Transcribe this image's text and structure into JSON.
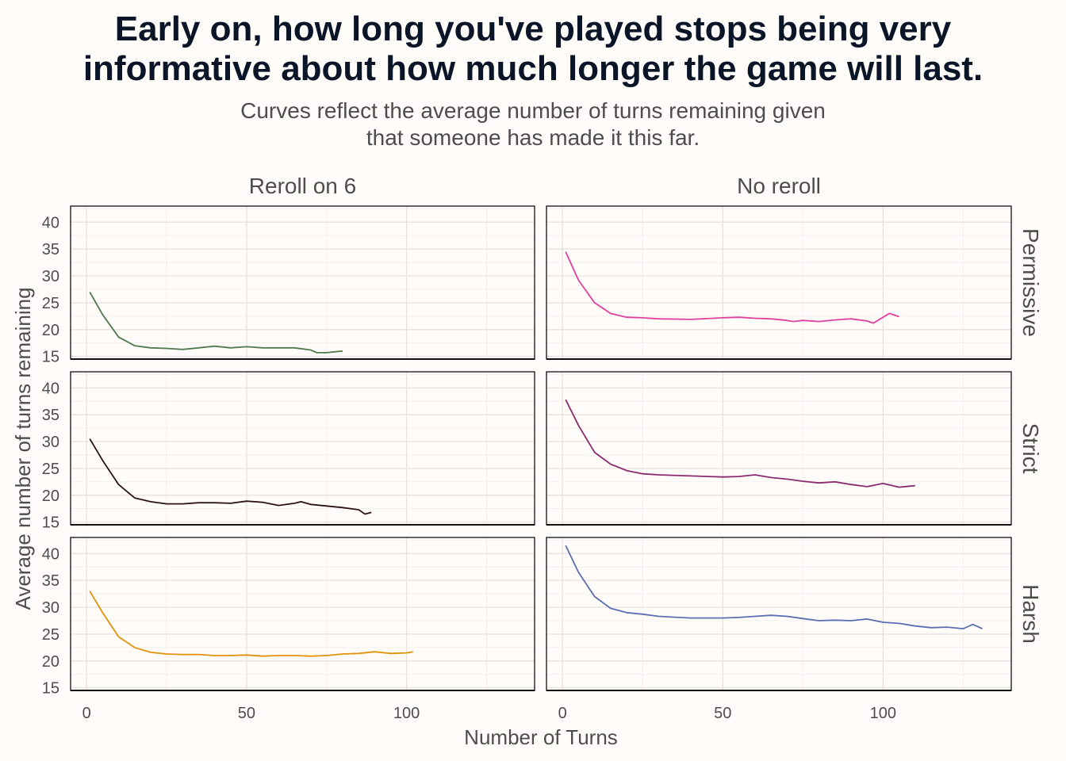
{
  "chart_data": {
    "type": "line",
    "title": "Early on, how long you've played stops being very informative about how much longer the game will last.",
    "title_lines": [
      "Early on, how long you've played stops being very",
      "informative about how much longer the game will last."
    ],
    "subtitle": "Curves reflect the average number of turns remaining given that someone has made it this far.",
    "subtitle_lines": [
      "Curves reflect the average number of turns remaining given",
      "that someone has made it this far."
    ],
    "xlabel": "Number of Turns",
    "ylabel": "Average number of turns remaining",
    "xlim": [
      -5,
      140
    ],
    "ylim": [
      14.5,
      43
    ],
    "x_ticks": [
      0,
      50,
      100
    ],
    "y_ticks": [
      15,
      20,
      25,
      30,
      35,
      40
    ],
    "grid": true,
    "columns": [
      "Reroll on 6",
      "No reroll"
    ],
    "rows": [
      "Permissive",
      "Strict",
      "Harsh"
    ],
    "panels": [
      {
        "row": "Permissive",
        "column": "Reroll on 6",
        "color": "#4f7a4f",
        "x": [
          1,
          5,
          10,
          15,
          20,
          25,
          30,
          35,
          40,
          45,
          50,
          55,
          60,
          65,
          70,
          72,
          75,
          80
        ],
        "y": [
          27,
          22.8,
          18.6,
          17.0,
          16.6,
          16.5,
          16.3,
          16.6,
          16.9,
          16.6,
          16.8,
          16.6,
          16.6,
          16.6,
          16.2,
          15.7,
          15.7,
          16.0
        ]
      },
      {
        "row": "Permissive",
        "column": "No reroll",
        "color": "#e0409e",
        "x": [
          1,
          5,
          10,
          15,
          20,
          25,
          30,
          40,
          50,
          55,
          60,
          65,
          70,
          72,
          75,
          80,
          85,
          90,
          95,
          97,
          100,
          102,
          105
        ],
        "y": [
          34.5,
          29.2,
          25.0,
          23.0,
          22.3,
          22.2,
          22.0,
          21.9,
          22.2,
          22.3,
          22.1,
          22.0,
          21.7,
          21.5,
          21.7,
          21.5,
          21.8,
          22.0,
          21.6,
          21.2,
          22.3,
          23.0,
          22.4
        ]
      },
      {
        "row": "Strict",
        "column": "Reroll on 6",
        "color": "#2d1218",
        "x": [
          1,
          5,
          10,
          15,
          20,
          25,
          30,
          35,
          40,
          45,
          50,
          55,
          60,
          65,
          67,
          70,
          75,
          80,
          85,
          87,
          89
        ],
        "y": [
          30.5,
          26.5,
          22.0,
          19.5,
          18.8,
          18.4,
          18.4,
          18.6,
          18.6,
          18.5,
          18.9,
          18.7,
          18.1,
          18.5,
          18.8,
          18.3,
          18.0,
          17.7,
          17.3,
          16.5,
          16.8
        ]
      },
      {
        "row": "Strict",
        "column": "No reroll",
        "color": "#8c2a70",
        "x": [
          1,
          5,
          10,
          15,
          20,
          25,
          30,
          40,
          50,
          55,
          60,
          65,
          70,
          75,
          80,
          85,
          90,
          95,
          100,
          105,
          110
        ],
        "y": [
          37.8,
          33.0,
          28.0,
          25.8,
          24.6,
          24.0,
          23.8,
          23.6,
          23.4,
          23.5,
          23.8,
          23.3,
          23.0,
          22.6,
          22.3,
          22.5,
          22.0,
          21.6,
          22.2,
          21.5,
          21.8
        ]
      },
      {
        "row": "Harsh",
        "column": "Reroll on 6",
        "color": "#e0920a",
        "x": [
          1,
          5,
          10,
          15,
          20,
          25,
          30,
          35,
          40,
          45,
          50,
          55,
          60,
          65,
          70,
          75,
          80,
          85,
          90,
          95,
          100,
          102
        ],
        "y": [
          33.0,
          29.0,
          24.5,
          22.5,
          21.6,
          21.3,
          21.2,
          21.2,
          21.0,
          21.0,
          21.1,
          20.9,
          21.0,
          21.0,
          20.9,
          21.0,
          21.3,
          21.4,
          21.7,
          21.4,
          21.5,
          21.7
        ]
      },
      {
        "row": "Harsh",
        "column": "No reroll",
        "color": "#5b6fb0",
        "x": [
          1,
          5,
          10,
          15,
          20,
          25,
          30,
          40,
          50,
          55,
          60,
          65,
          70,
          75,
          80,
          85,
          90,
          95,
          100,
          105,
          110,
          115,
          120,
          125,
          128,
          131
        ],
        "y": [
          41.5,
          36.5,
          32.0,
          29.8,
          29.0,
          28.7,
          28.3,
          28.0,
          28.0,
          28.1,
          28.3,
          28.5,
          28.3,
          27.9,
          27.5,
          27.6,
          27.5,
          27.8,
          27.2,
          27.0,
          26.5,
          26.2,
          26.3,
          26.0,
          26.8,
          26.0
        ]
      }
    ]
  }
}
